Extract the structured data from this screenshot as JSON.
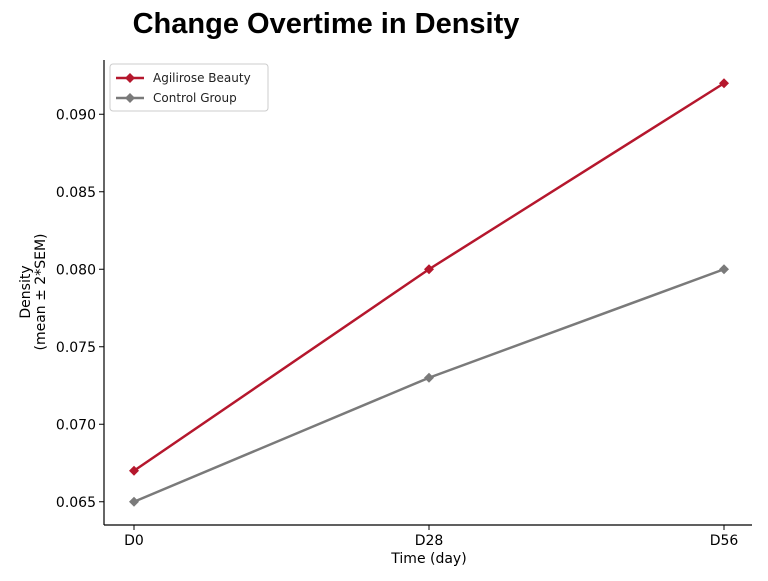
{
  "chart_data": {
    "type": "line",
    "title": "Change Overtime in Density",
    "xlabel": "Time (day)",
    "ylabel_line1": "Density",
    "ylabel_line2": "(mean ± 2*SEM)",
    "categories": [
      "D0",
      "D28",
      "D56"
    ],
    "ylim": [
      0.0635,
      0.0935
    ],
    "yticks": [
      0.065,
      0.07,
      0.075,
      0.08,
      0.085,
      0.09
    ],
    "ytick_labels": [
      "0.065",
      "0.070",
      "0.075",
      "0.080",
      "0.085",
      "0.090"
    ],
    "legend_position": "top-left",
    "grid": false,
    "series": [
      {
        "name": "Agilirose Beauty",
        "color": "#b5172d",
        "marker": "diamond",
        "values": [
          0.067,
          0.08,
          0.092
        ]
      },
      {
        "name": "Control Group",
        "color": "#7a7a7a",
        "marker": "diamond",
        "values": [
          0.065,
          0.073,
          0.08
        ]
      }
    ]
  }
}
